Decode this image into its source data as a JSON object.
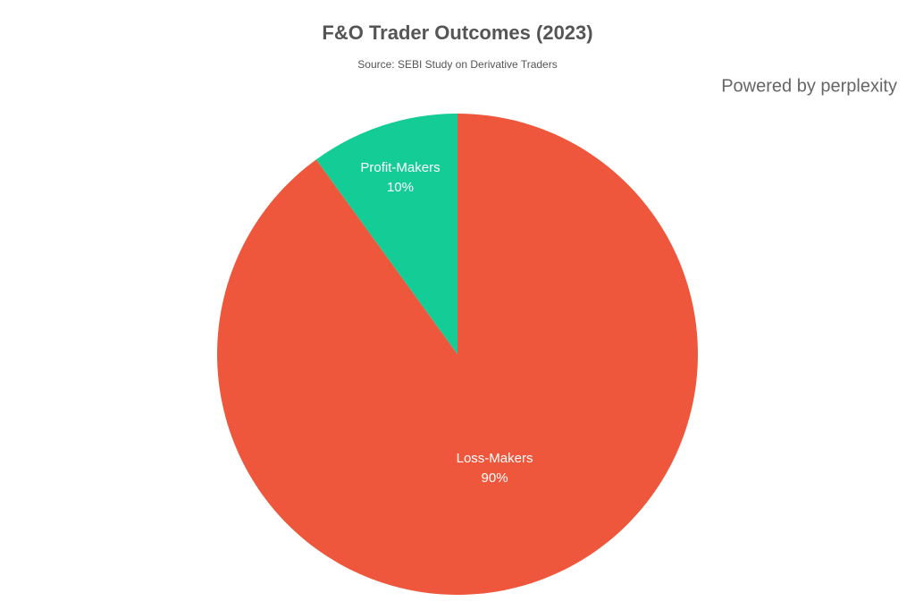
{
  "chart_data": {
    "type": "pie",
    "title": "F&O Trader Outcomes (2023)",
    "subtitle": "Source: SEBI Study on Derivative Traders",
    "branding": "Powered by perplexity",
    "categories": [
      "Loss-Makers",
      "Profit-Makers"
    ],
    "values": [
      90,
      10
    ],
    "value_labels": [
      "90%",
      "10%"
    ],
    "colors": [
      "#ee573c",
      "#13cc96"
    ]
  }
}
